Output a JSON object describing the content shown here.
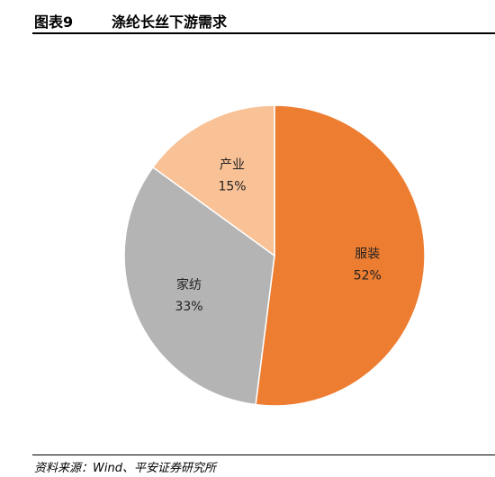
{
  "header": {
    "figure_label": "图表9",
    "title": "涤纶长丝下游需求"
  },
  "footer": {
    "source": "资料来源：Wind、平安证券研究所"
  },
  "chart_data": {
    "type": "pie",
    "title": "涤纶长丝下游需求",
    "slices": [
      {
        "label": "服装",
        "value": 52,
        "display": "52%",
        "color": "#ED7D31"
      },
      {
        "label": "家纺",
        "value": 33,
        "display": "33%",
        "color": "#B4B4B4"
      },
      {
        "label": "产业",
        "value": 15,
        "display": "15%",
        "color": "#F8C196"
      }
    ],
    "start_angle_deg": 0,
    "direction": "clockwise",
    "legend": "none",
    "data_labels": "inside"
  }
}
